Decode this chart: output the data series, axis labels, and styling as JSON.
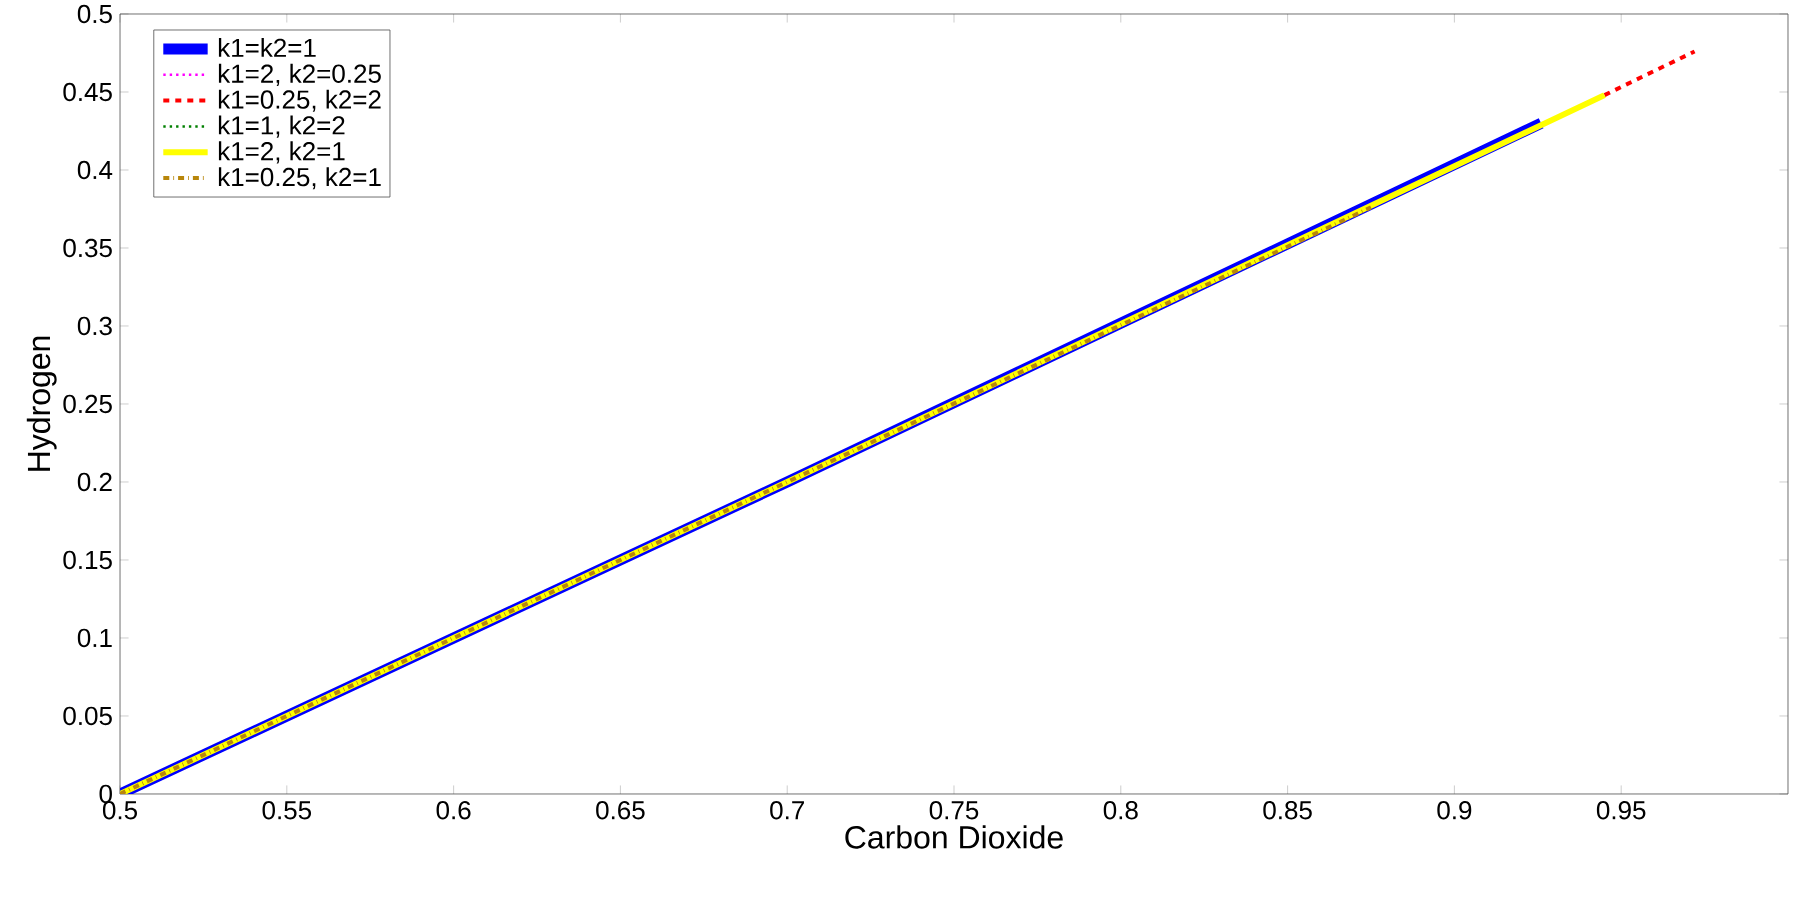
{
  "chart_data": {
    "type": "line",
    "xlabel": "Carbon Dioxide",
    "ylabel": "Hydrogen",
    "xlim": [
      0.5,
      1
    ],
    "ylim": [
      0,
      0.5
    ],
    "xticks": [
      0.5,
      0.55,
      0.6,
      0.65,
      0.7,
      0.75,
      0.8,
      0.85,
      0.9,
      0.95
    ],
    "yticks": [
      0,
      0.05,
      0.1,
      0.15,
      0.2,
      0.25,
      0.3,
      0.35,
      0.4,
      0.45,
      0.5
    ],
    "grid": false,
    "legend": "top left",
    "series": [
      {
        "name": "k1=k2=1",
        "color": "#0000ff",
        "line_style": "solid",
        "x": [
          0.5,
          0.7,
          0.926
        ],
        "values": [
          0,
          0.2,
          0.43
        ]
      },
      {
        "name": "k1=2, k2=0.25",
        "color": "#ff00ff",
        "line_style": "dotted"
      },
      {
        "name": "k1=0.25, k2=2",
        "color": "#ff0000",
        "line_style": "dashed",
        "x": [
          0.945,
          0.972
        ],
        "values": [
          0.448,
          0.476
        ]
      },
      {
        "name": "k1=1, k2=2",
        "color": "#008000",
        "line_style": "dotted"
      },
      {
        "name": "k1=2, k2=1",
        "color": "#ffff00",
        "line_style": "solid",
        "x": [
          0.5,
          0.7,
          0.945
        ],
        "values": [
          0,
          0.2,
          0.448
        ]
      },
      {
        "name": "k1=0.25, k2=1",
        "color": "#b8860b",
        "line_style": "dashdot",
        "x": [
          0.5,
          0.7,
          0.875
        ],
        "values": [
          0,
          0.2,
          0.376
        ]
      }
    ]
  }
}
